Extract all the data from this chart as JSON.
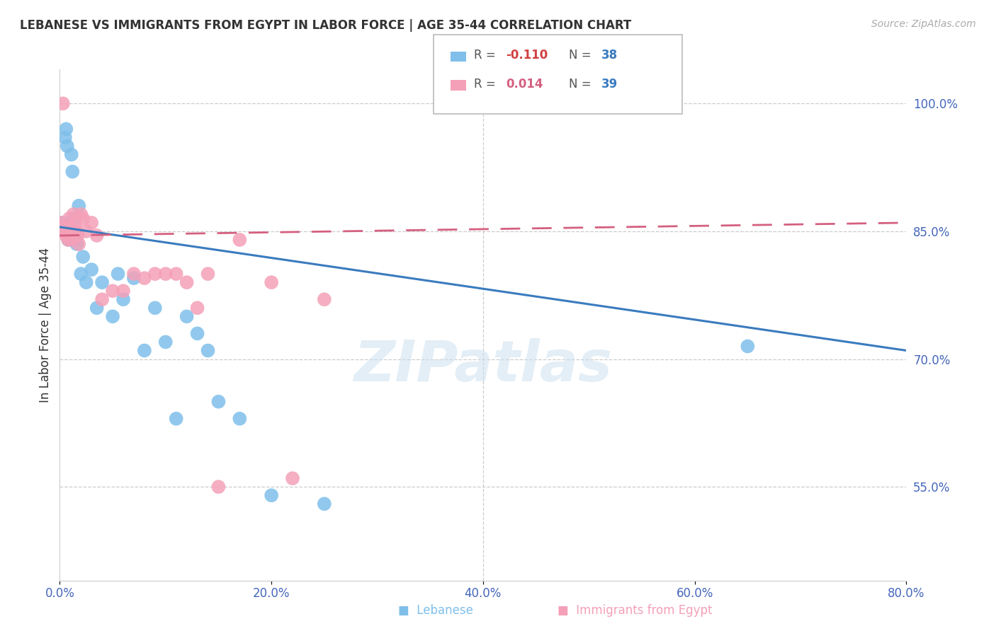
{
  "title": "LEBANESE VS IMMIGRANTS FROM EGYPT IN LABOR FORCE | AGE 35-44 CORRELATION CHART",
  "source": "Source: ZipAtlas.com",
  "xlabel_ticks": [
    "0.0%",
    "20.0%",
    "40.0%",
    "60.0%",
    "80.0%"
  ],
  "xlabel_vals": [
    0.0,
    20.0,
    40.0,
    60.0,
    80.0
  ],
  "ylabel_ticks": [
    "55.0%",
    "70.0%",
    "85.0%",
    "100.0%"
  ],
  "ylabel_vals": [
    55.0,
    70.0,
    85.0,
    100.0
  ],
  "xlim": [
    0.0,
    80.0
  ],
  "ylim": [
    44.0,
    104.0
  ],
  "legend_blue_R": "-0.110",
  "legend_blue_N": "38",
  "legend_pink_R": "0.014",
  "legend_pink_N": "39",
  "blue_color": "#7fbfea",
  "pink_color": "#f4a0b8",
  "trend_blue_color": "#3a7bbf",
  "trend_pink_color": "#d46080",
  "watermark": "ZIPatlas",
  "ylabel": "In Labor Force | Age 35-44",
  "blue_x": [
    0.2,
    0.3,
    0.4,
    0.5,
    0.6,
    0.7,
    0.8,
    0.9,
    1.0,
    1.1,
    1.2,
    1.3,
    1.4,
    1.5,
    1.6,
    1.8,
    2.0,
    2.2,
    2.5,
    3.0,
    3.5,
    4.0,
    5.0,
    5.5,
    6.0,
    7.0,
    8.0,
    9.0,
    10.0,
    11.0,
    12.0,
    13.0,
    14.0,
    15.0,
    17.0,
    20.0,
    25.0,
    65.0
  ],
  "blue_y": [
    86.0,
    85.5,
    85.0,
    96.0,
    97.0,
    95.0,
    84.0,
    86.0,
    85.5,
    94.0,
    92.0,
    85.0,
    86.5,
    84.0,
    83.5,
    88.0,
    80.0,
    82.0,
    79.0,
    80.5,
    76.0,
    79.0,
    75.0,
    80.0,
    77.0,
    79.5,
    71.0,
    76.0,
    72.0,
    63.0,
    75.0,
    73.0,
    71.0,
    65.0,
    63.0,
    54.0,
    53.0,
    71.5
  ],
  "pink_x": [
    0.1,
    0.2,
    0.3,
    0.4,
    0.5,
    0.6,
    0.7,
    0.8,
    0.9,
    1.0,
    1.1,
    1.2,
    1.3,
    1.4,
    1.5,
    1.6,
    1.7,
    1.8,
    2.0,
    2.2,
    2.5,
    3.0,
    3.5,
    4.0,
    5.0,
    6.0,
    7.0,
    8.0,
    9.0,
    10.0,
    11.0,
    12.0,
    13.0,
    14.0,
    15.0,
    17.0,
    20.0,
    22.0,
    25.0
  ],
  "pink_y": [
    86.0,
    85.5,
    100.0,
    85.0,
    85.0,
    84.5,
    85.0,
    84.0,
    86.5,
    85.5,
    84.0,
    85.0,
    87.0,
    85.0,
    86.0,
    85.0,
    84.5,
    83.5,
    87.0,
    86.5,
    85.0,
    86.0,
    84.5,
    77.0,
    78.0,
    78.0,
    80.0,
    79.5,
    80.0,
    80.0,
    80.0,
    79.0,
    76.0,
    80.0,
    55.0,
    84.0,
    79.0,
    56.0,
    77.0
  ],
  "blue_trend_x0": 0.0,
  "blue_trend_y0": 85.5,
  "blue_trend_x1": 80.0,
  "blue_trend_y1": 71.0,
  "pink_trend_x0": 0.0,
  "pink_trend_y0": 84.5,
  "pink_trend_x1": 80.0,
  "pink_trend_y1": 86.0
}
